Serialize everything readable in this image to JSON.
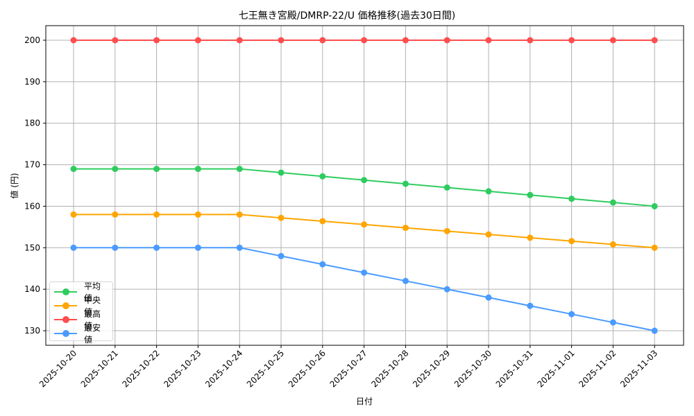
{
  "chart_data": {
    "type": "line",
    "title": "七王無き宮殿/DMRP-22/U 価格推移(過去30日間)",
    "xlabel": "日付",
    "ylabel": "値 (円)",
    "ylim": [
      126.5,
      203.5
    ],
    "yticks": [
      130,
      140,
      150,
      160,
      170,
      180,
      190,
      200
    ],
    "grid": true,
    "legend_position": "lower left",
    "x": [
      "2025-10-20",
      "2025-10-21",
      "2025-10-22",
      "2025-10-23",
      "2025-10-24",
      "2025-10-25",
      "2025-10-26",
      "2025-10-27",
      "2025-10-28",
      "2025-10-29",
      "2025-10-30",
      "2025-10-31",
      "2025-11-01",
      "2025-11-02",
      "2025-11-03"
    ],
    "series": [
      {
        "name": "平均値",
        "color": "#2ecc5f",
        "values": [
          169,
          169,
          169,
          169,
          169,
          168.1,
          167.2,
          166.3,
          165.4,
          164.5,
          163.6,
          162.7,
          161.8,
          160.9,
          160
        ]
      },
      {
        "name": "中央値",
        "color": "#ffa500",
        "values": [
          158,
          158,
          158,
          158,
          158,
          157.2,
          156.4,
          155.6,
          154.8,
          154,
          153.2,
          152.4,
          151.6,
          150.8,
          150
        ]
      },
      {
        "name": "最高値",
        "color": "#ff4d4d",
        "values": [
          200,
          200,
          200,
          200,
          200,
          200,
          200,
          200,
          200,
          200,
          200,
          200,
          200,
          200,
          200
        ]
      },
      {
        "name": "最安値",
        "color": "#4a9bff",
        "values": [
          150,
          150,
          150,
          150,
          150,
          148,
          146,
          144,
          142,
          140,
          138,
          136,
          134,
          132,
          130
        ]
      }
    ]
  }
}
